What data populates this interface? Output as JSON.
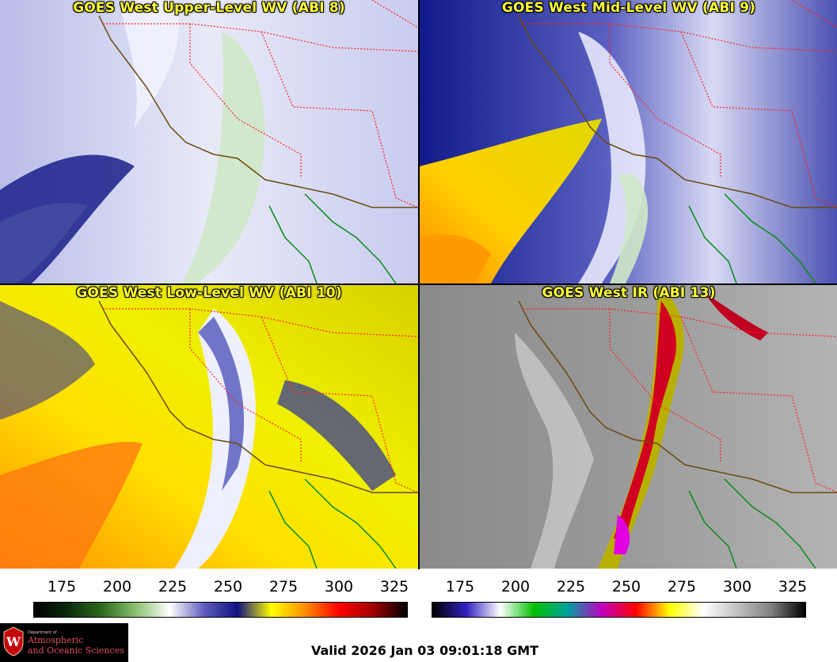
{
  "panels": [
    {
      "title": "GOES West Upper-Level WV (ABI 8)",
      "colormap": "wv"
    },
    {
      "title": "GOES West Mid-Level WV (ABI 9)",
      "colormap": "wv"
    },
    {
      "title": "GOES West Low-Level WV (ABI 10)",
      "colormap": "wv"
    },
    {
      "title": "GOES West IR (ABI 13)",
      "colormap": "ir"
    }
  ],
  "colorbars": [
    {
      "name": "water-vapor",
      "ticks": [
        "175",
        "200",
        "225",
        "250",
        "275",
        "300",
        "325"
      ],
      "stops": [
        "#000000",
        "#0a2a0a",
        "#2e6a1e",
        "#8ac070",
        "#ffffff",
        "#6060c0",
        "#101080",
        "#ffff00",
        "#ff8c00",
        "#ff0000",
        "#a00000",
        "#000000"
      ]
    },
    {
      "name": "infrared",
      "ticks": [
        "175",
        "200",
        "225",
        "250",
        "275",
        "300",
        "325"
      ],
      "stops": [
        "#000000",
        "#3020c0",
        "#ffffff",
        "#00c000",
        "#00a0a0",
        "#c000c0",
        "#ff0000",
        "#ffff00",
        "#ffffff",
        "#c0c0c0",
        "#808080",
        "#000000"
      ]
    }
  ],
  "logo": {
    "dept": "Department of",
    "line1": "Atmospheric",
    "line2": "and Oceanic Sciences",
    "seal_letter": "W"
  },
  "valid_time": "Valid 2026 Jan 03 09:01:18 GMT"
}
